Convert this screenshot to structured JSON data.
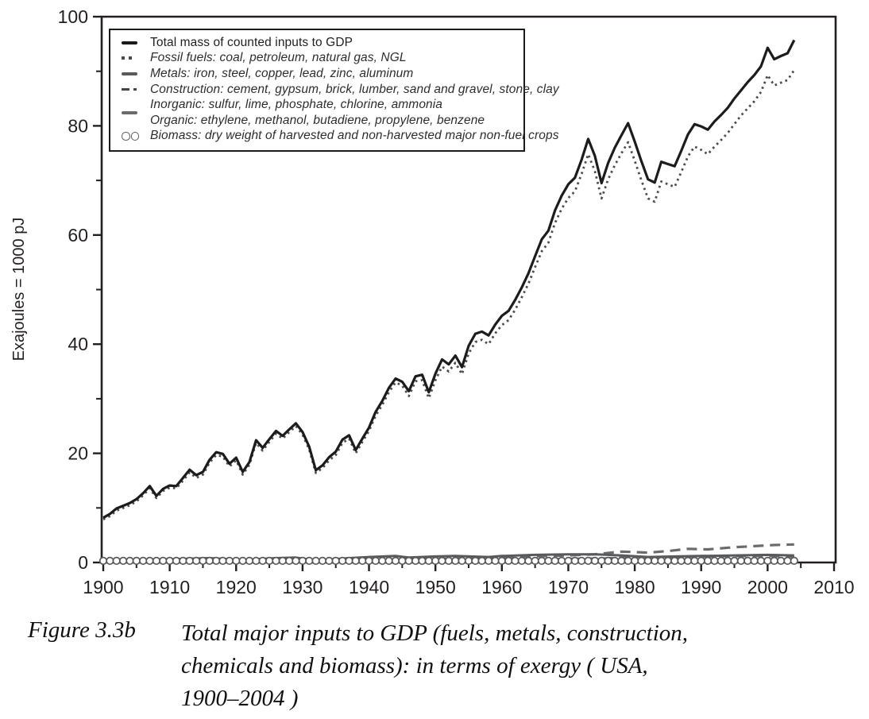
{
  "figure": {
    "caption_label": "Figure 3.3b",
    "caption_lines": [
      "Total major inputs to GDP (fuels, metals, construction,",
      "chemicals and biomass): in terms of exergy ( USA,",
      "1900–2004 )"
    ]
  },
  "legend": {
    "items": [
      {
        "marker": "solid-black-line",
        "label": "Total mass of counted inputs to GDP"
      },
      {
        "marker": "dotted-line",
        "label": "Fossil fuels: coal, petroleum, natural gas, NGL"
      },
      {
        "marker": "solid-gray-line",
        "label": "Metals: iron, steel, copper, lead, zinc, aluminum"
      },
      {
        "marker": "dash-dot-line",
        "label": "Construction: cement, gypsum, brick, lumber, sand and gravel, stone, clay"
      },
      {
        "marker": "long-gray-dash",
        "label": "Inorganic: sulfur, lime, phosphate, chlorine, ammonia"
      },
      {
        "marker": "none",
        "label": "Organic: ethylene, methanol, butadiene, propylene, benzene"
      },
      {
        "marker": "open-circles",
        "label": "Biomass: dry weight of harvested and non-harvested major non-fuel crops"
      }
    ]
  },
  "chart_data": {
    "type": "line",
    "title": "",
    "xlabel": "",
    "ylabel": "Exajoules = 1000 pJ",
    "xlim": [
      1900,
      2010
    ],
    "ylim": [
      0,
      100
    ],
    "grid": false,
    "legend_position": "top-left",
    "x_major_ticks": [
      1900,
      1910,
      1920,
      1930,
      1940,
      1950,
      1960,
      1970,
      1980,
      1990,
      2000,
      2010
    ],
    "x_minor_ticks": [
      1905,
      1915,
      1925,
      1935,
      1945,
      1955,
      1965,
      1975,
      1985,
      1995,
      2005
    ],
    "y_major_ticks": [
      0,
      20,
      40,
      60,
      80,
      100
    ],
    "y_minor_ticks": [
      10,
      30,
      50,
      70,
      90
    ],
    "years_start": 1900,
    "years_end": 2004,
    "series": [
      {
        "name": "Inorganic: sulfur, lime, phosphate, chlorine, ammonia",
        "line": "longdash",
        "color": "#6b6b6b",
        "width": 3.2,
        "x": [
          1900,
          1920,
          1940,
          1950,
          1955,
          1960,
          1965,
          1970,
          1974,
          1978,
          1980,
          1982,
          1985,
          1988,
          1991,
          1995,
          1998,
          2001,
          2004
        ],
        "values": [
          0.05,
          0.15,
          0.4,
          0.6,
          0.8,
          0.9,
          1.1,
          1.3,
          1.5,
          2.0,
          1.9,
          1.8,
          2.1,
          2.5,
          2.4,
          2.8,
          3.0,
          3.2,
          3.3
        ]
      },
      {
        "name": "Organic: ethylene, methanol, butadiene, propylene, benzene",
        "line": "longdash",
        "color": "#6b6b6b",
        "width": 2.2,
        "x": [
          1940,
          1950,
          1955,
          1960,
          1965,
          1970,
          1975,
          1980,
          1985,
          1990,
          1995,
          2000,
          2004
        ],
        "values": [
          0.05,
          0.15,
          0.25,
          0.4,
          0.55,
          0.75,
          0.8,
          1.0,
          0.9,
          1.0,
          1.1,
          1.1,
          1.0
        ]
      },
      {
        "name": "Construction: cement, gypsum, brick, lumber, sand and gravel, stone, clay",
        "line": "dashdot",
        "color": "#454545",
        "width": 2.4,
        "x": [
          1900,
          1910,
          1920,
          1930,
          1940,
          1950,
          1960,
          1970,
          1980,
          1990,
          2000,
          2004
        ],
        "values": [
          0.1,
          0.15,
          0.2,
          0.2,
          0.25,
          0.35,
          0.45,
          0.55,
          0.5,
          0.55,
          0.6,
          0.6
        ]
      },
      {
        "name": "Metals: iron, steel, copper, lead, zinc, aluminum",
        "line": "solid",
        "color": "#58595b",
        "width": 3.0,
        "x": [
          1900,
          1905,
          1910,
          1916,
          1921,
          1926,
          1929,
          1932,
          1937,
          1940,
          1944,
          1946,
          1950,
          1953,
          1958,
          1960,
          1965,
          1970,
          1974,
          1978,
          1982,
          1986,
          1990,
          1995,
          2000,
          2004
        ],
        "values": [
          0.4,
          0.5,
          0.6,
          0.8,
          0.5,
          0.8,
          0.9,
          0.4,
          0.8,
          1.0,
          1.2,
          0.9,
          1.1,
          1.2,
          1.0,
          1.2,
          1.4,
          1.5,
          1.5,
          1.3,
          1.0,
          1.1,
          1.2,
          1.3,
          1.4,
          1.3
        ]
      },
      {
        "name": "Biomass: dry weight of harvested and non-harvested major non-fuel crops",
        "line": "none",
        "marker": "circle",
        "color": "#58595b",
        "width": 1.7,
        "marker_radius": 4.3,
        "constant_value": 0.3
      },
      {
        "name": "Fossil fuels: coal, petroleum, natural gas, NGL",
        "line": "dotted",
        "color": "#4d4d4d",
        "width": 2.8,
        "values": [
          7.9,
          8.5,
          9.5,
          10.0,
          10.5,
          11.2,
          12.3,
          13.6,
          11.8,
          13.1,
          13.7,
          13.6,
          15.0,
          16.5,
          15.5,
          16.1,
          18.3,
          19.7,
          19.4,
          17.6,
          18.7,
          16.1,
          17.9,
          21.9,
          20.5,
          22.1,
          23.6,
          22.7,
          23.9,
          25.0,
          23.4,
          20.7,
          16.4,
          17.3,
          18.7,
          19.7,
          21.9,
          22.7,
          20.0,
          22.1,
          24.1,
          26.9,
          28.9,
          31.2,
          33.0,
          32.4,
          30.5,
          33.2,
          33.4,
          30.1,
          33.4,
          35.9,
          35.0,
          36.6,
          34.5,
          38.3,
          40.4,
          40.8,
          40.0,
          42.0,
          43.5,
          44.4,
          46.3,
          48.6,
          51.1,
          54.1,
          57.0,
          58.6,
          62.2,
          64.8,
          66.8,
          68.0,
          71.2,
          74.8,
          71.7,
          66.7,
          70.2,
          72.8,
          75.0,
          77.0,
          73.6,
          70.0,
          66.7,
          66.1,
          69.8,
          69.3,
          68.8,
          71.5,
          74.4,
          76.2,
          75.6,
          74.8,
          76.2,
          77.4,
          78.7,
          80.3,
          81.9,
          83.2,
          84.5,
          86.2,
          89.3,
          87.4,
          87.9,
          88.4,
          90.2
        ]
      },
      {
        "name": "Total mass of counted inputs to GDP",
        "line": "solid",
        "color": "#1c1c1c",
        "width": 3.2,
        "values": [
          8.2,
          8.9,
          9.9,
          10.4,
          10.9,
          11.6,
          12.7,
          14.0,
          12.2,
          13.5,
          14.1,
          14.0,
          15.5,
          17.0,
          16.0,
          16.6,
          18.8,
          20.2,
          19.9,
          18.1,
          19.2,
          16.6,
          18.4,
          22.4,
          21.0,
          22.6,
          24.1,
          23.2,
          24.4,
          25.5,
          23.9,
          21.2,
          16.9,
          17.8,
          19.3,
          20.3,
          22.5,
          23.3,
          20.6,
          22.7,
          24.7,
          27.6,
          29.6,
          32.0,
          33.7,
          33.1,
          31.4,
          34.1,
          34.4,
          31.2,
          34.6,
          37.2,
          36.3,
          37.9,
          35.8,
          39.7,
          41.9,
          42.3,
          41.6,
          43.6,
          45.2,
          46.1,
          48.1,
          50.4,
          53.0,
          56.1,
          59.2,
          60.8,
          64.5,
          67.2,
          69.3,
          70.5,
          73.8,
          77.6,
          74.5,
          69.5,
          73.2,
          76.0,
          78.3,
          80.5,
          77.1,
          73.5,
          70.2,
          69.6,
          73.4,
          73.0,
          72.6,
          75.4,
          78.4,
          80.3,
          79.9,
          79.3,
          80.8,
          82.0,
          83.3,
          85.0,
          86.5,
          88.0,
          89.3,
          90.9,
          94.3,
          92.2,
          92.8,
          93.3,
          95.7
        ]
      }
    ]
  }
}
